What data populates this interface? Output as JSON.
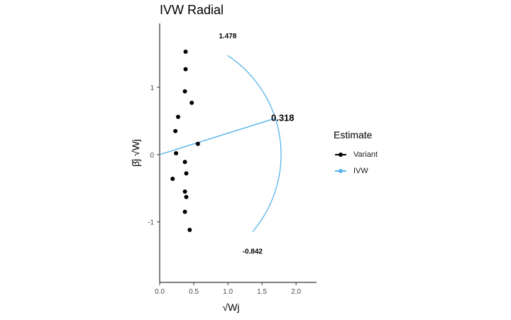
{
  "chart_data": {
    "type": "scatter",
    "title": "IVW Radial",
    "xlabel": "√Wj",
    "ylabel": "β̂j √Wj",
    "xlim": [
      0,
      2.3
    ],
    "ylim": [
      -1.9,
      1.95
    ],
    "x_ticks": [
      0.0,
      0.5,
      1.0,
      1.5,
      2.0
    ],
    "x_tick_labels": [
      "0.0",
      "0.5",
      "1.0",
      "1.5",
      "2.0"
    ],
    "y_ticks": [
      -1,
      0,
      1
    ],
    "y_tick_labels": [
      "-1",
      "0",
      "1"
    ],
    "grid": false,
    "legend_position": "right",
    "legend_title": "Estimate",
    "series": [
      {
        "name": "Variant",
        "color": "#000000",
        "points": [
          {
            "x": 0.38,
            "y": 1.53
          },
          {
            "x": 0.38,
            "y": 1.27
          },
          {
            "x": 0.37,
            "y": 0.94
          },
          {
            "x": 0.47,
            "y": 0.77
          },
          {
            "x": 0.27,
            "y": 0.56
          },
          {
            "x": 0.23,
            "y": 0.35
          },
          {
            "x": 0.56,
            "y": 0.16
          },
          {
            "x": 0.24,
            "y": 0.02
          },
          {
            "x": 0.37,
            "y": -0.11
          },
          {
            "x": 0.39,
            "y": -0.28
          },
          {
            "x": 0.19,
            "y": -0.36
          },
          {
            "x": 0.37,
            "y": -0.55
          },
          {
            "x": 0.39,
            "y": -0.63
          },
          {
            "x": 0.37,
            "y": -0.85
          },
          {
            "x": 0.44,
            "y": -1.12
          }
        ]
      },
      {
        "name": "IVW",
        "color": "#56B4E9",
        "slope": 0.318,
        "arc_radius": 1.78,
        "arc_upper_label": "1.478",
        "arc_lower_label": "-0.842",
        "estimate_label": "0.318"
      }
    ]
  }
}
